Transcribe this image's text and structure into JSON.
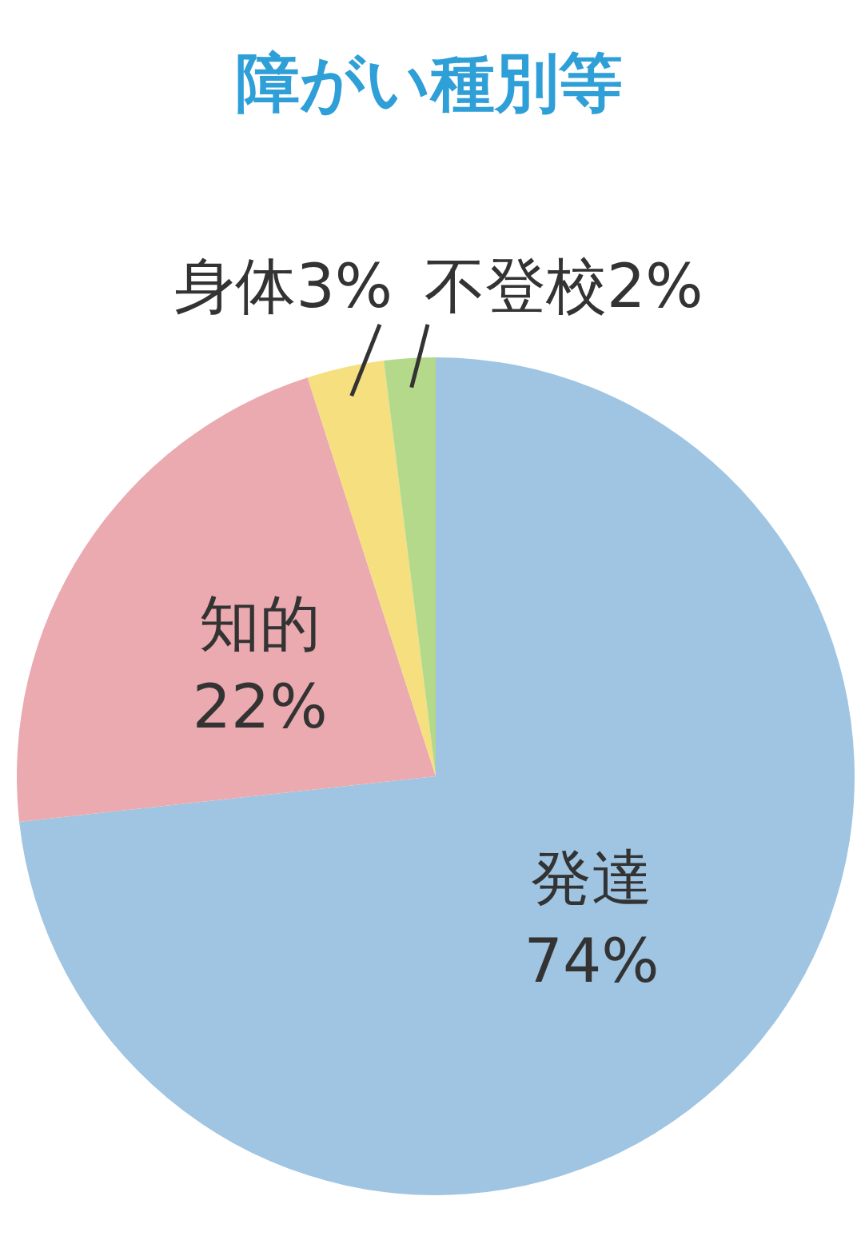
{
  "chart_data": {
    "type": "pie",
    "title": "障がい種別等",
    "categories": [
      "発達",
      "知的",
      "身体",
      "不登校"
    ],
    "values": [
      74,
      22,
      3,
      2
    ],
    "colors": [
      "#9fc5e3",
      "#eaaab0",
      "#f5df7f",
      "#b5d98a"
    ],
    "value_labels": [
      "74%",
      "22%",
      "3%",
      "2%"
    ]
  }
}
